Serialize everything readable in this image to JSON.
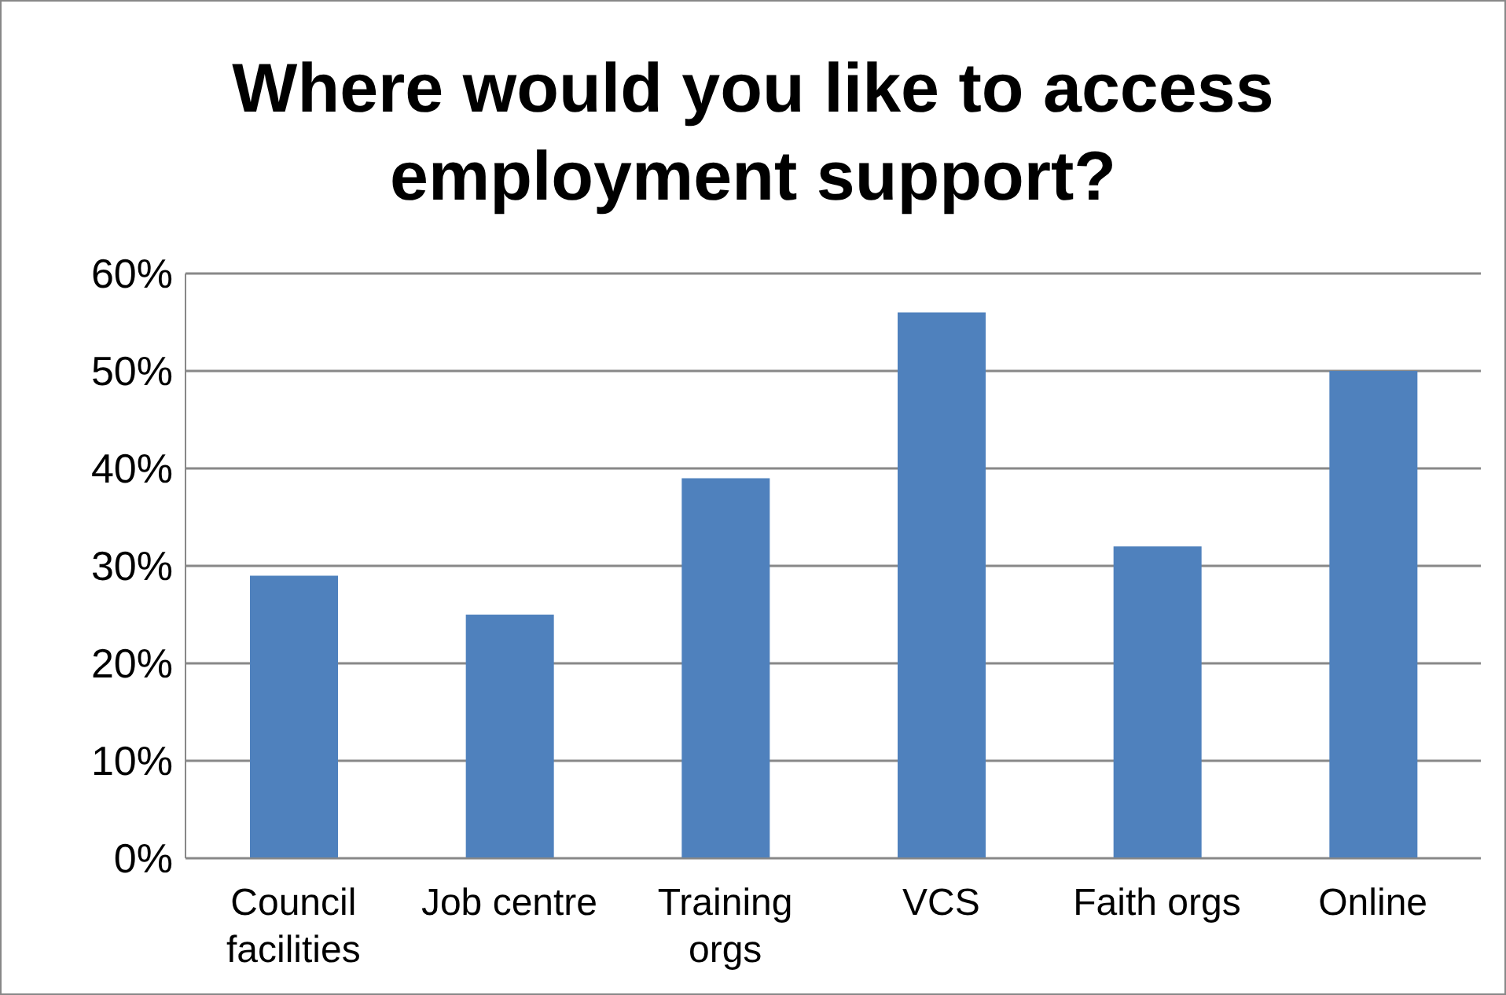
{
  "chart_data": {
    "type": "bar",
    "title": "Where would you like to access employment support?",
    "categories": [
      "Council facilities",
      "Job centre",
      "Training orgs",
      "VCS",
      "Faith orgs",
      "Online"
    ],
    "values": [
      29,
      25,
      39,
      56,
      32,
      50
    ],
    "color": "#4f81bd",
    "ylim": [
      0,
      60
    ],
    "yticks": [
      {
        "value": 0,
        "label": "0%"
      },
      {
        "value": 10,
        "label": "10%"
      },
      {
        "value": 20,
        "label": "20%"
      },
      {
        "value": 30,
        "label": "30%"
      },
      {
        "value": 40,
        "label": "40%"
      },
      {
        "value": 50,
        "label": "50%"
      },
      {
        "value": 60,
        "label": "60%"
      }
    ],
    "grid": "y",
    "legend": false
  }
}
